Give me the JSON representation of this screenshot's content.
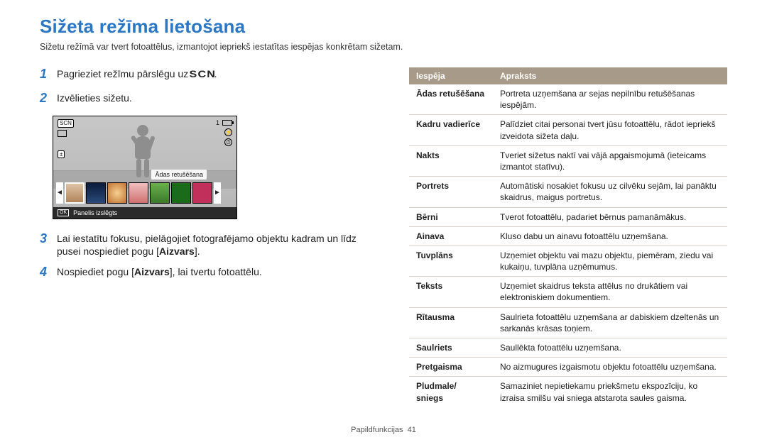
{
  "colors": {
    "heading": "#2b77c4",
    "table_header_bg": "#a89a89",
    "table_header_fg": "#ffffff",
    "row_border": "#d8d2ca",
    "body_text": "#222222"
  },
  "title": "Sižeta režīma lietošana",
  "intro": "Sižetu režīmā var tvert fotoattēlus, izmantojot iepriekš iestatītas iespējas konkrētam sižetam.",
  "steps": {
    "s1_pre": "Pagrieziet režīmu pārslēgu uz ",
    "s1_mode": "SCN",
    "s1_post": ".",
    "s2": "Izvēlieties sižetu.",
    "s3_a": "Lai iestatītu fokusu, pielāgojiet fotografējamo objektu kadram un līdz pusei nospiediet pogu [",
    "s3_b": "Aizvars",
    "s3_c": "].",
    "s4_a": "Nospiediet pogu [",
    "s4_b": "Aizvars",
    "s4_c": "], lai tvertu fotoattēlu."
  },
  "lcd": {
    "tooltip": "Ādas retušēšana",
    "panel_ok": "OK",
    "panel_text": "Panelis izslēgts",
    "shots_left": "1",
    "ev_label": "±"
  },
  "table": {
    "head_option": "Iespēja",
    "head_desc": "Apraksts",
    "rows": [
      {
        "o": "Ādas retušēšana",
        "d": "Portreta uzņemšana ar sejas nepilnību retušēšanas iespējām."
      },
      {
        "o": "Kadru vadierīce",
        "d": "Palīdziet citai personai tvert jūsu fotoattēlu, rādot iepriekš izveidota sižeta daļu."
      },
      {
        "o": "Nakts",
        "d": "Tveriet sižetus naktī vai vājā apgaismojumā (ieteicams izmantot statīvu)."
      },
      {
        "o": "Portrets",
        "d": "Automātiski nosakiet fokusu uz cilvēku sejām, lai panāktu skaidrus, maigus portretus."
      },
      {
        "o": "Bērni",
        "d": "Tverot fotoattēlu, padariet bērnus pamanāmākus."
      },
      {
        "o": "Ainava",
        "d": "Kluso dabu un ainavu fotoattēlu uzņemšana."
      },
      {
        "o": "Tuvplāns",
        "d": "Uzņemiet objektu vai mazu objektu, piemēram, ziedu vai kukaiņu, tuvplāna uzņēmumus."
      },
      {
        "o": "Teksts",
        "d": "Uzņemiet skaidrus teksta attēlus no drukātiem vai elektroniskiem dokumentiem."
      },
      {
        "o": "Rītausma",
        "d": "Saulrieta fotoattēlu uzņemšana ar dabiskiem dzeltenās un sarkanās krāsas toņiem."
      },
      {
        "o": "Saulriets",
        "d": "Saullēkta fotoattēlu uzņemšana."
      },
      {
        "o": "Pretgaisma",
        "d": "No aizmugures izgaismotu objektu fotoattēlu uzņemšana."
      },
      {
        "o": "Pludmale/ sniegs",
        "d": "Samaziniet nepietiekamu priekšmetu ekspozīciju, ko izraisa smilšu vai sniega atstarota saules gaisma."
      }
    ]
  },
  "footer": {
    "label": "Papildfunkcijas",
    "page": "41"
  }
}
